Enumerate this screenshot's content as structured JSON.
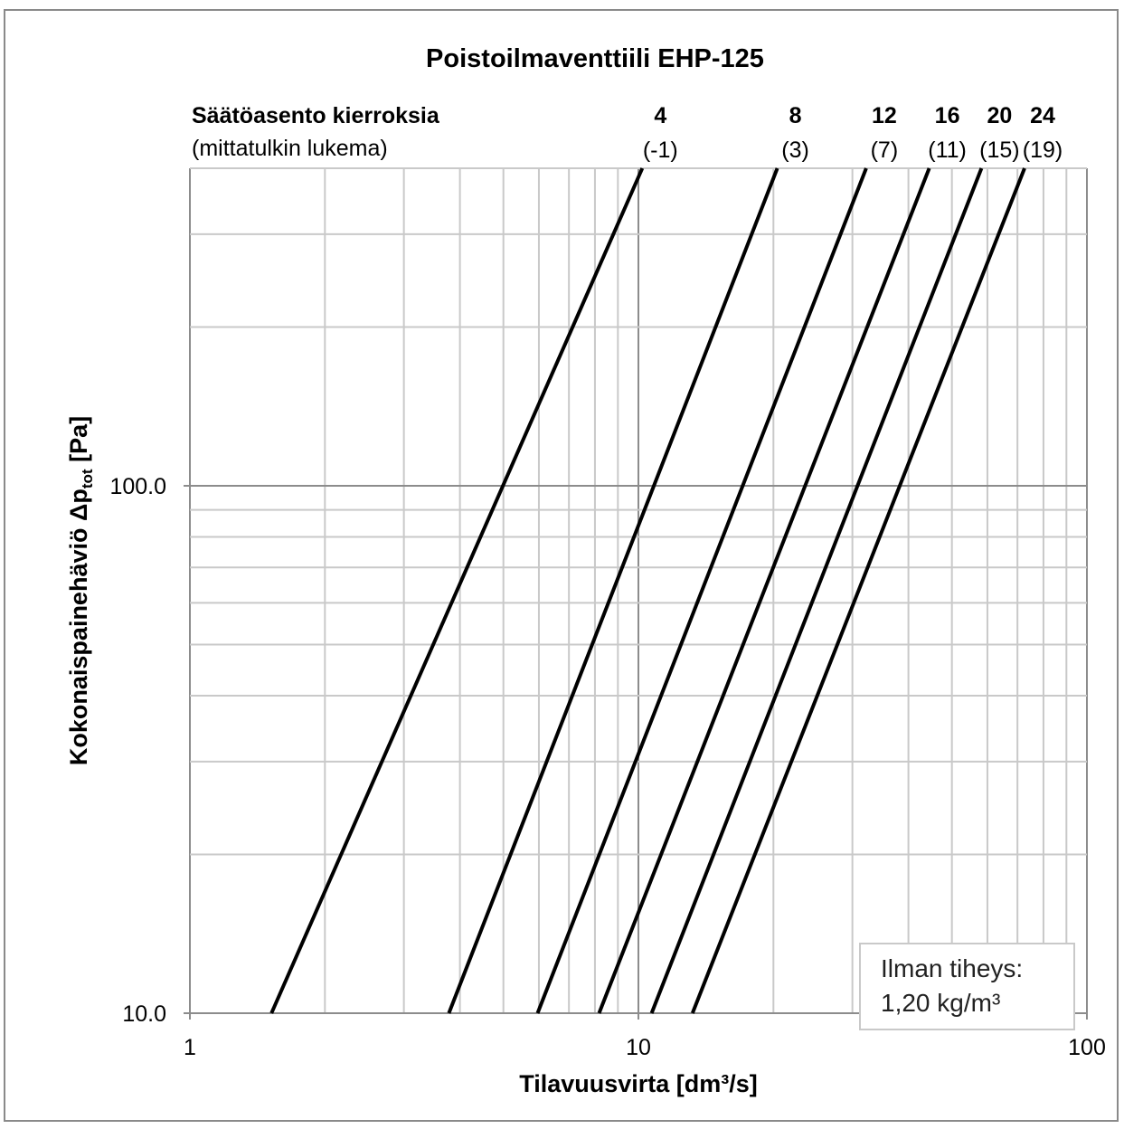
{
  "chart_data": {
    "type": "line",
    "title": "Poistoilmaventtiili EHP-125",
    "xlabel": "Tilavuusvirta [dm³/s]",
    "ylabel_main": "Kokonaispainehäviö Δp",
    "ylabel_sub": "tot",
    "ylabel_unit": " [Pa]",
    "x_scale": "log",
    "y_scale": "log",
    "xlim": [
      1,
      100
    ],
    "ylim": [
      10,
      400
    ],
    "x_ticks": [
      "1",
      "10",
      "100"
    ],
    "y_ticks": [
      "10.0",
      "100.0"
    ],
    "grid": true,
    "header_label": "Säätöasento kierroksia",
    "header_sublabel": "(mittatulkin lukema)",
    "series": [
      {
        "setting": "4",
        "reading": "(-1)",
        "x": [
          1.52,
          10.2
        ],
        "y": [
          10,
          400
        ]
      },
      {
        "setting": "8",
        "reading": "(3)",
        "x": [
          3.78,
          20.4
        ],
        "y": [
          10,
          400
        ]
      },
      {
        "setting": "12",
        "reading": "(7)",
        "x": [
          5.96,
          32.2
        ],
        "y": [
          10,
          400
        ]
      },
      {
        "setting": "16",
        "reading": "(11)",
        "x": [
          8.17,
          44.5
        ],
        "y": [
          10,
          400
        ]
      },
      {
        "setting": "20",
        "reading": "(15)",
        "x": [
          10.7,
          58.2
        ],
        "y": [
          10,
          400
        ]
      },
      {
        "setting": "24",
        "reading": "(19)",
        "x": [
          13.2,
          72.6
        ],
        "y": [
          10,
          400
        ]
      }
    ],
    "annotation": {
      "line1": "Ilman tiheys:",
      "line2": "1,20 kg/m³"
    }
  }
}
